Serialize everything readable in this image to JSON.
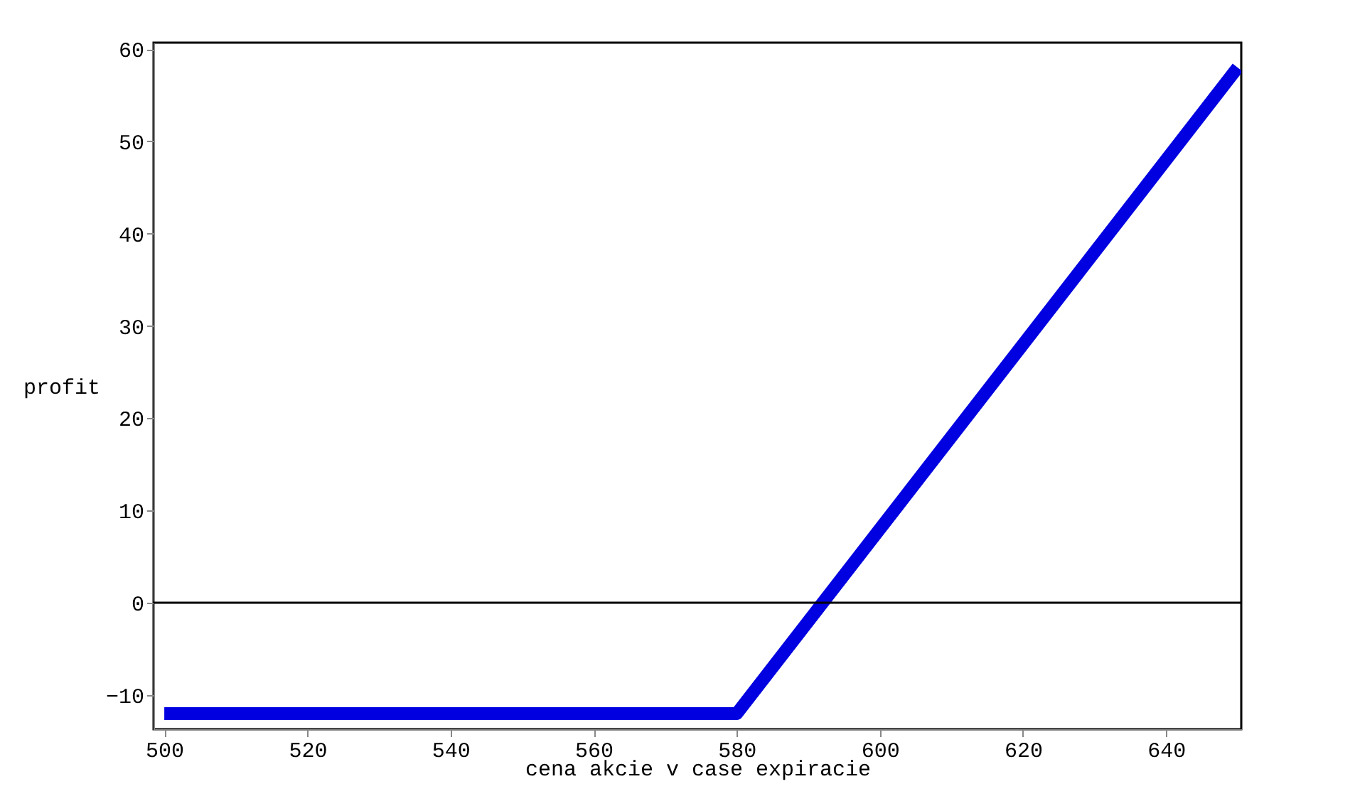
{
  "chart_data": {
    "type": "line",
    "xlabel": "cena akcie v case expiracie",
    "ylabel": "profit",
    "x": [
      500,
      580,
      650
    ],
    "series": [
      {
        "color": "#0000e0",
        "values": [
          -12,
          -12,
          58
        ]
      }
    ],
    "xlim": [
      498.5,
      650.5
    ],
    "xticks": [
      500,
      520,
      540,
      560,
      580,
      600,
      620,
      640
    ],
    "ylim": [
      -13.7,
      60.7
    ],
    "yticks": [
      -10,
      0,
      10,
      20,
      30,
      40,
      50,
      60
    ],
    "ref_lines": [
      {
        "axis": "y",
        "value": 0,
        "color": "#000000"
      }
    ],
    "grid": false,
    "marker": "none",
    "line_style": "solid"
  }
}
